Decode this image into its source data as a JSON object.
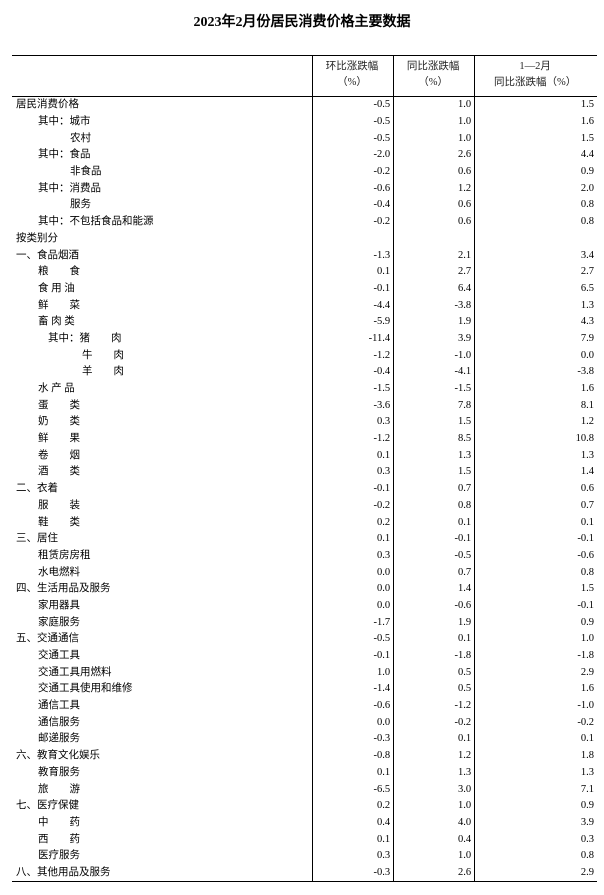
{
  "title": "2023年2月份居民消费价格主要数据",
  "headers": [
    "",
    "环比涨跌幅\n（%）",
    "同比涨跌幅\n（%）",
    "1—2月\n同比涨跌幅（%）"
  ],
  "rows": [
    {
      "label": "居民消费价格",
      "level": 0,
      "mom": "-0.5",
      "yoy": "1.0",
      "ytd": "1.5"
    },
    {
      "label": "其中：城市",
      "level": 1,
      "mom": "-0.5",
      "yoy": "1.0",
      "ytd": "1.6"
    },
    {
      "label": "农村",
      "level": 2,
      "mom": "-0.5",
      "yoy": "1.0",
      "ytd": "1.5"
    },
    {
      "label": "其中：食品",
      "level": 1,
      "mom": "-2.0",
      "yoy": "2.6",
      "ytd": "4.4"
    },
    {
      "label": "非食品",
      "level": 2,
      "mom": "-0.2",
      "yoy": "0.6",
      "ytd": "0.9"
    },
    {
      "label": "其中：消费品",
      "level": 1,
      "mom": "-0.6",
      "yoy": "1.2",
      "ytd": "2.0"
    },
    {
      "label": "服务",
      "level": 2,
      "mom": "-0.4",
      "yoy": "0.6",
      "ytd": "0.8"
    },
    {
      "label": "其中：不包括食品和能源",
      "level": 1,
      "mom": "-0.2",
      "yoy": "0.6",
      "ytd": "0.8"
    },
    {
      "label": "按类别分",
      "level": 0,
      "mom": "",
      "yoy": "",
      "ytd": ""
    },
    {
      "label": "一、食品烟酒",
      "level": 0,
      "mom": "-1.3",
      "yoy": "2.1",
      "ytd": "3.4"
    },
    {
      "label": "粮　　食",
      "level": 1,
      "mom": "0.1",
      "yoy": "2.7",
      "ytd": "2.7"
    },
    {
      "label": "食 用 油",
      "level": 1,
      "mom": "-0.1",
      "yoy": "6.4",
      "ytd": "6.5"
    },
    {
      "label": "鲜　　菜",
      "level": 1,
      "mom": "-4.4",
      "yoy": "-3.8",
      "ytd": "1.3"
    },
    {
      "label": "畜 肉 类",
      "level": 1,
      "mom": "-5.9",
      "yoy": "1.9",
      "ytd": "4.3"
    },
    {
      "label": "其中：猪　　肉",
      "level": 3,
      "mom": "-11.4",
      "yoy": "3.9",
      "ytd": "7.9"
    },
    {
      "label": "牛　　肉",
      "level": 4,
      "mom": "-1.2",
      "yoy": "-1.0",
      "ytd": "0.0"
    },
    {
      "label": "羊　　肉",
      "level": 4,
      "mom": "-0.4",
      "yoy": "-4.1",
      "ytd": "-3.8"
    },
    {
      "label": "水 产 品",
      "level": 1,
      "mom": "-1.5",
      "yoy": "-1.5",
      "ytd": "1.6"
    },
    {
      "label": "蛋　　类",
      "level": 1,
      "mom": "-3.6",
      "yoy": "7.8",
      "ytd": "8.1"
    },
    {
      "label": "奶　　类",
      "level": 1,
      "mom": "0.3",
      "yoy": "1.5",
      "ytd": "1.2"
    },
    {
      "label": "鲜　　果",
      "level": 1,
      "mom": "-1.2",
      "yoy": "8.5",
      "ytd": "10.8"
    },
    {
      "label": "卷　　烟",
      "level": 1,
      "mom": "0.1",
      "yoy": "1.3",
      "ytd": "1.3"
    },
    {
      "label": "酒　　类",
      "level": 1,
      "mom": "0.3",
      "yoy": "1.5",
      "ytd": "1.4"
    },
    {
      "label": "二、衣着",
      "level": 0,
      "mom": "-0.1",
      "yoy": "0.7",
      "ytd": "0.6"
    },
    {
      "label": "服　　装",
      "level": 1,
      "mom": "-0.2",
      "yoy": "0.8",
      "ytd": "0.7"
    },
    {
      "label": "鞋　　类",
      "level": 1,
      "mom": "0.2",
      "yoy": "0.1",
      "ytd": "0.1"
    },
    {
      "label": "三、居住",
      "level": 0,
      "mom": "0.1",
      "yoy": "-0.1",
      "ytd": "-0.1"
    },
    {
      "label": "租赁房房租",
      "level": 1,
      "mom": "0.3",
      "yoy": "-0.5",
      "ytd": "-0.6"
    },
    {
      "label": "水电燃料",
      "level": 1,
      "mom": "0.0",
      "yoy": "0.7",
      "ytd": "0.8"
    },
    {
      "label": "四、生活用品及服务",
      "level": 0,
      "mom": "0.0",
      "yoy": "1.4",
      "ytd": "1.5"
    },
    {
      "label": "家用器具",
      "level": 1,
      "mom": "0.0",
      "yoy": "-0.6",
      "ytd": "-0.1"
    },
    {
      "label": "家庭服务",
      "level": 1,
      "mom": "-1.7",
      "yoy": "1.9",
      "ytd": "0.9"
    },
    {
      "label": "五、交通通信",
      "level": 0,
      "mom": "-0.5",
      "yoy": "0.1",
      "ytd": "1.0"
    },
    {
      "label": "交通工具",
      "level": 1,
      "mom": "-0.1",
      "yoy": "-1.8",
      "ytd": "-1.8"
    },
    {
      "label": "交通工具用燃料",
      "level": 1,
      "mom": "1.0",
      "yoy": "0.5",
      "ytd": "2.9"
    },
    {
      "label": "交通工具使用和维修",
      "level": 1,
      "mom": "-1.4",
      "yoy": "0.5",
      "ytd": "1.6"
    },
    {
      "label": "通信工具",
      "level": 1,
      "mom": "-0.6",
      "yoy": "-1.2",
      "ytd": "-1.0"
    },
    {
      "label": "通信服务",
      "level": 1,
      "mom": "0.0",
      "yoy": "-0.2",
      "ytd": "-0.2"
    },
    {
      "label": "邮递服务",
      "level": 1,
      "mom": "-0.3",
      "yoy": "0.1",
      "ytd": "0.1"
    },
    {
      "label": "六、教育文化娱乐",
      "level": 0,
      "mom": "-0.8",
      "yoy": "1.2",
      "ytd": "1.8"
    },
    {
      "label": "教育服务",
      "level": 1,
      "mom": "0.1",
      "yoy": "1.3",
      "ytd": "1.3"
    },
    {
      "label": "旅　　游",
      "level": 1,
      "mom": "-6.5",
      "yoy": "3.0",
      "ytd": "7.1"
    },
    {
      "label": "七、医疗保健",
      "level": 0,
      "mom": "0.2",
      "yoy": "1.0",
      "ytd": "0.9"
    },
    {
      "label": "中　　药",
      "level": 1,
      "mom": "0.4",
      "yoy": "4.0",
      "ytd": "3.9"
    },
    {
      "label": "西　　药",
      "level": 1,
      "mom": "0.1",
      "yoy": "0.4",
      "ytd": "0.3"
    },
    {
      "label": "医疗服务",
      "level": 1,
      "mom": "0.3",
      "yoy": "1.0",
      "ytd": "0.8"
    },
    {
      "label": "八、其他用品及服务",
      "level": 0,
      "mom": "-0.3",
      "yoy": "2.6",
      "ytd": "2.9"
    }
  ]
}
